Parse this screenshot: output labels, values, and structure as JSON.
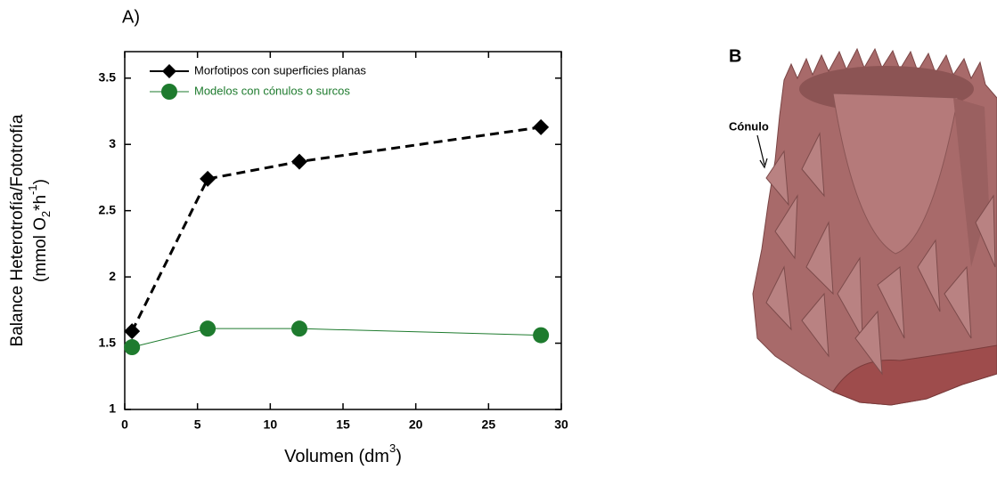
{
  "chart_data": {
    "type": "line",
    "panel_label": "A)",
    "x_label": [
      "Volumen (dm",
      "3",
      ")"
    ],
    "y_label": [
      "Balance Heterotrofía/Fototrofía",
      "(mmol O",
      "2",
      "*h",
      "-1",
      ")"
    ],
    "x": [
      0.5,
      5.7,
      12,
      28.6
    ],
    "series": [
      {
        "name": "Morfotipos con superficies planas",
        "color": "#000000",
        "dashed": true,
        "marker": "diamond",
        "values": [
          1.59,
          2.74,
          2.87,
          3.13
        ]
      },
      {
        "name": "Modelos con cónulos o surcos",
        "color": "#1e7b2e",
        "dashed": false,
        "marker": "circle",
        "values": [
          1.47,
          1.61,
          1.61,
          1.56
        ]
      }
    ],
    "xlim": [
      0,
      30
    ],
    "xticks": [
      0,
      5,
      10,
      15,
      20,
      25,
      30
    ],
    "ylim": [
      1,
      3.7
    ],
    "yticks": [
      1,
      1.5,
      2,
      2.5,
      3,
      3.5
    ],
    "legend": "upper-left"
  },
  "panel_b": {
    "label": "B",
    "annotation": "Cónulo"
  }
}
